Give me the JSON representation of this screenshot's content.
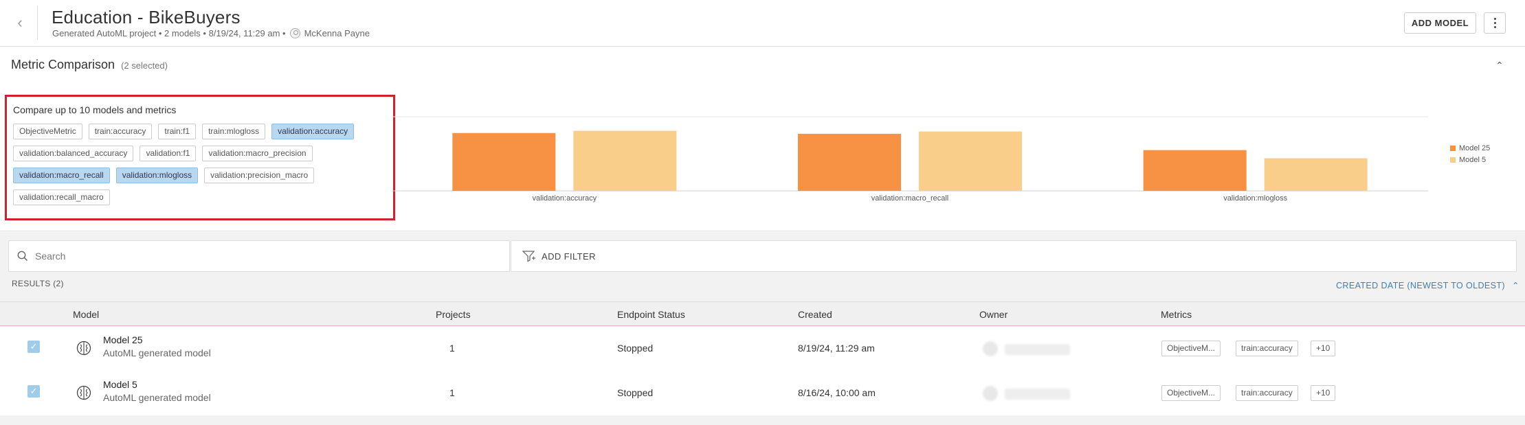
{
  "header": {
    "title": "Education - BikeBuyers",
    "subtitle": "Generated AutoML project • 2 models • 8/19/24, 11:29 am •",
    "owner": "McKenna Payne",
    "add_model_label": "ADD MODEL"
  },
  "metric_panel": {
    "title": "Metric Comparison",
    "selected_count": "(2 selected)",
    "chooser_title": "Compare up to 10 models and metrics",
    "tags": [
      {
        "label": "ObjectiveMetric",
        "selected": false
      },
      {
        "label": "train:accuracy",
        "selected": false
      },
      {
        "label": "train:f1",
        "selected": false
      },
      {
        "label": "train:mlogloss",
        "selected": false
      },
      {
        "label": "validation:accuracy",
        "selected": true
      },
      {
        "label": "validation:balanced_accuracy",
        "selected": false
      },
      {
        "label": "validation:f1",
        "selected": false
      },
      {
        "label": "validation:macro_precision",
        "selected": false
      },
      {
        "label": "validation:macro_recall",
        "selected": true
      },
      {
        "label": "validation:mlogloss",
        "selected": true
      },
      {
        "label": "validation:precision_macro",
        "selected": false
      },
      {
        "label": "validation:recall_macro",
        "selected": false
      }
    ]
  },
  "chart_data": {
    "type": "bar",
    "categories": [
      "validation:accuracy",
      "validation:macro_recall",
      "validation:mlogloss"
    ],
    "series": [
      {
        "name": "Model 25",
        "values": [
          0.78,
          0.77,
          0.55
        ],
        "color": "#f79143"
      },
      {
        "name": "Model 5",
        "values": [
          0.81,
          0.8,
          0.44
        ],
        "color": "#f9cd8a"
      }
    ],
    "ylim": [
      0,
      1
    ],
    "legend_position": "right"
  },
  "search": {
    "placeholder": "Search",
    "add_filter_label": "ADD FILTER"
  },
  "results": {
    "count_label": "RESULTS (2)",
    "sort_label": "CREATED DATE (NEWEST TO OLDEST)"
  },
  "table": {
    "columns": [
      "Model",
      "Projects",
      "Endpoint Status",
      "Created",
      "Owner",
      "Metrics"
    ],
    "rows": [
      {
        "name": "Model 25",
        "description": "AutoML generated model",
        "projects": "1",
        "status": "Stopped",
        "created": "8/19/24, 11:29 am",
        "metrics": [
          "ObjectiveM...",
          "train:accuracy",
          "+10"
        ]
      },
      {
        "name": "Model 5",
        "description": "AutoML generated model",
        "projects": "1",
        "status": "Stopped",
        "created": "8/16/24, 10:00 am",
        "metrics": [
          "ObjectiveM...",
          "train:accuracy",
          "+10"
        ]
      }
    ]
  },
  "colors": {
    "accent_blue": "#3a7fb8",
    "selected_tag": "#b8d8ef",
    "highlight_border": "#d0202d",
    "checkbox": "#9ecce9"
  }
}
